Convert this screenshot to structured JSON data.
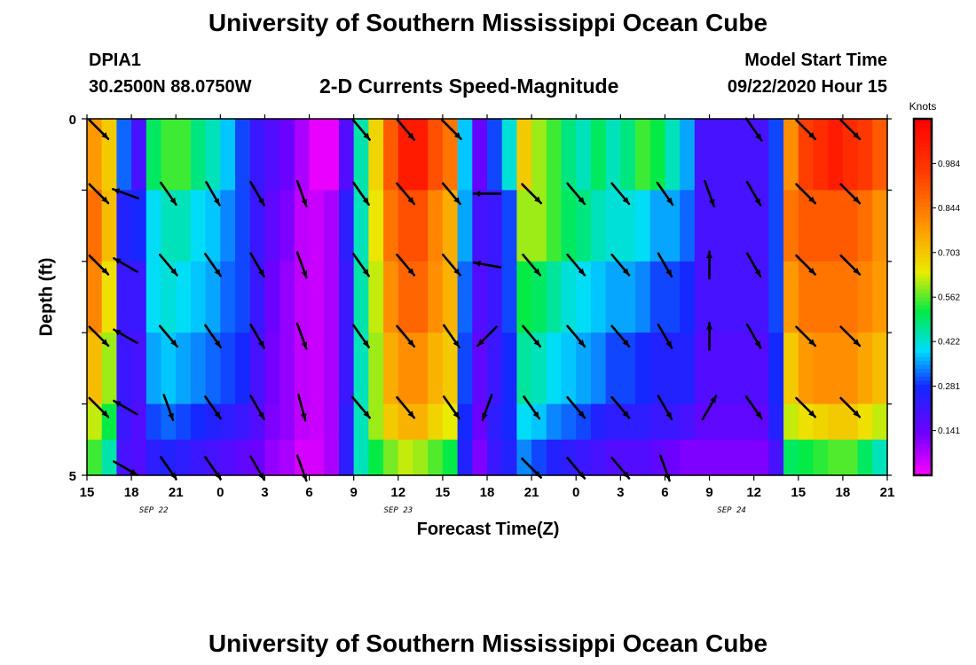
{
  "header": {
    "title": "University of Southern Mississippi Ocean Cube",
    "station_name": "DPIA1",
    "station_coords": "30.2500N 88.0750W",
    "subtitle": "2-D Currents Speed-Magnitude",
    "model_start_label": "Model Start Time",
    "model_start_value": "09/22/2020 Hour 15"
  },
  "footer": {
    "title": "University of Southern Mississippi Ocean Cube"
  },
  "chart_data": {
    "type": "heatmap",
    "xlabel": "Forecast Time(Z)",
    "ylabel": "Depth (ft)",
    "x_unit": "hours from 09/22 15Z",
    "xlim": [
      0,
      54
    ],
    "ylim": [
      0,
      5
    ],
    "y_ticks": [
      "0",
      "5"
    ],
    "x_tick_labels": [
      "15",
      "18",
      "21",
      "0",
      "3",
      "6",
      "9",
      "12",
      "15",
      "18",
      "21",
      "0",
      "3",
      "6",
      "9",
      "12",
      "15",
      "18",
      "21"
    ],
    "date_labels": [
      {
        "text": "SEP 22",
        "hour": 4.5
      },
      {
        "text": "SEP 23",
        "hour": 21
      },
      {
        "text": "SEP 24",
        "hour": 43.5
      }
    ],
    "colorbar": {
      "label": "Knots",
      "min": 0,
      "max": 1.125,
      "ticks": [
        "0.984",
        "0.844",
        "0.703",
        "0.562",
        "0.422",
        "0.281",
        "0.141"
      ],
      "tick_values": [
        0.984,
        0.844,
        0.703,
        0.562,
        0.422,
        0.281,
        0.141
      ]
    },
    "depth_layers": [
      "0-1",
      "1-2",
      "2-3",
      "3-4",
      "4-4.5",
      "4.5-5"
    ],
    "time_hours": [
      0,
      1,
      2,
      3,
      4,
      5,
      6,
      7,
      8,
      9,
      10,
      11,
      12,
      13,
      14,
      15,
      16,
      17,
      18,
      19,
      20,
      21,
      22,
      23,
      24,
      25,
      26,
      27,
      28,
      29,
      30,
      31,
      32,
      33,
      34,
      35,
      36,
      37,
      38,
      39,
      40,
      41,
      42,
      43,
      44,
      45,
      46,
      47,
      48,
      49,
      50,
      51,
      52,
      53
    ],
    "speed": [
      [
        0.78,
        0.7,
        0.32,
        0.2,
        0.5,
        0.55,
        0.55,
        0.48,
        0.44,
        0.38,
        0.3,
        0.22,
        0.18,
        0.14,
        0.08,
        0.02,
        0.02,
        0.18,
        0.45,
        0.68,
        0.9,
        1.05,
        1.05,
        0.92,
        0.85,
        0.38,
        0.15,
        0.3,
        0.42,
        0.7,
        0.6,
        0.55,
        0.48,
        0.44,
        0.5,
        0.44,
        0.48,
        0.55,
        0.52,
        0.44,
        0.36,
        0.2,
        0.2,
        0.2,
        0.2,
        0.2,
        0.3,
        0.8,
        0.95,
        1.0,
        1.05,
        1.0,
        0.97,
        0.9
      ],
      [
        0.86,
        0.72,
        0.26,
        0.28,
        0.4,
        0.44,
        0.44,
        0.4,
        0.38,
        0.34,
        0.3,
        0.22,
        0.16,
        0.12,
        0.06,
        0.05,
        0.08,
        0.24,
        0.44,
        0.65,
        0.85,
        0.92,
        0.92,
        0.82,
        0.75,
        0.36,
        0.2,
        0.22,
        0.3,
        0.6,
        0.6,
        0.55,
        0.5,
        0.48,
        0.44,
        0.42,
        0.42,
        0.4,
        0.36,
        0.36,
        0.32,
        0.2,
        0.2,
        0.2,
        0.2,
        0.2,
        0.3,
        0.85,
        0.9,
        0.9,
        0.9,
        0.9,
        0.86,
        0.8
      ],
      [
        0.82,
        0.66,
        0.22,
        0.22,
        0.4,
        0.42,
        0.4,
        0.38,
        0.36,
        0.32,
        0.3,
        0.22,
        0.14,
        0.1,
        0.06,
        0.05,
        0.08,
        0.22,
        0.45,
        0.62,
        0.8,
        0.88,
        0.88,
        0.8,
        0.74,
        0.32,
        0.18,
        0.22,
        0.3,
        0.52,
        0.5,
        0.46,
        0.42,
        0.4,
        0.38,
        0.36,
        0.36,
        0.34,
        0.3,
        0.3,
        0.28,
        0.2,
        0.2,
        0.2,
        0.2,
        0.2,
        0.3,
        0.78,
        0.85,
        0.85,
        0.85,
        0.85,
        0.82,
        0.78
      ],
      [
        0.72,
        0.6,
        0.22,
        0.2,
        0.36,
        0.38,
        0.36,
        0.34,
        0.32,
        0.3,
        0.28,
        0.2,
        0.13,
        0.1,
        0.06,
        0.05,
        0.08,
        0.22,
        0.44,
        0.6,
        0.75,
        0.8,
        0.8,
        0.74,
        0.7,
        0.3,
        0.16,
        0.22,
        0.28,
        0.46,
        0.44,
        0.4,
        0.38,
        0.36,
        0.34,
        0.3,
        0.3,
        0.28,
        0.26,
        0.26,
        0.26,
        0.18,
        0.18,
        0.18,
        0.18,
        0.18,
        0.28,
        0.7,
        0.78,
        0.8,
        0.8,
        0.8,
        0.76,
        0.72
      ],
      [
        0.62,
        0.52,
        0.22,
        0.18,
        0.3,
        0.32,
        0.3,
        0.28,
        0.26,
        0.24,
        0.22,
        0.18,
        0.12,
        0.1,
        0.06,
        0.05,
        0.08,
        0.24,
        0.44,
        0.6,
        0.7,
        0.74,
        0.74,
        0.68,
        0.64,
        0.28,
        0.14,
        0.24,
        0.28,
        0.4,
        0.38,
        0.34,
        0.32,
        0.3,
        0.26,
        0.24,
        0.24,
        0.24,
        0.22,
        0.22,
        0.2,
        0.16,
        0.16,
        0.16,
        0.16,
        0.16,
        0.26,
        0.62,
        0.66,
        0.68,
        0.7,
        0.7,
        0.66,
        0.62
      ],
      [
        0.55,
        0.45,
        0.2,
        0.18,
        0.24,
        0.26,
        0.24,
        0.22,
        0.2,
        0.18,
        0.16,
        0.14,
        0.1,
        0.08,
        0.04,
        0.04,
        0.08,
        0.24,
        0.44,
        0.52,
        0.58,
        0.62,
        0.6,
        0.56,
        0.52,
        0.26,
        0.12,
        0.22,
        0.26,
        0.34,
        0.3,
        0.26,
        0.24,
        0.22,
        0.2,
        0.18,
        0.18,
        0.18,
        0.16,
        0.14,
        0.12,
        0.12,
        0.12,
        0.12,
        0.12,
        0.12,
        0.2,
        0.5,
        0.52,
        0.54,
        0.56,
        0.56,
        0.5,
        0.44
      ]
    ],
    "arrow_rows_depth": [
      0.15,
      1.05,
      2.05,
      3.05,
      4.05,
      4.9
    ],
    "arrow_cols_hours": [
      0.8,
      2.6,
      5.5,
      8.5,
      11.5,
      14.5,
      18.5,
      21.5,
      24.6,
      27.0,
      30.0,
      33.0,
      36.0,
      39.0,
      42.0,
      45.0,
      48.5,
      51.5
    ],
    "arrow_directions_deg": [
      [
        135,
        null,
        null,
        null,
        null,
        null,
        140,
        140,
        135,
        null,
        null,
        null,
        null,
        null,
        null,
        145,
        135,
        135
      ],
      [
        135,
        290,
        145,
        150,
        150,
        160,
        145,
        140,
        140,
        270,
        135,
        140,
        140,
        145,
        160,
        150,
        135,
        135
      ],
      [
        135,
        300,
        140,
        145,
        150,
        160,
        145,
        140,
        140,
        280,
        140,
        140,
        140,
        150,
        0,
        150,
        135,
        135
      ],
      [
        135,
        300,
        140,
        145,
        150,
        160,
        145,
        140,
        145,
        225,
        140,
        140,
        140,
        150,
        0,
        150,
        135,
        135
      ],
      [
        135,
        300,
        160,
        145,
        150,
        165,
        140,
        140,
        145,
        200,
        145,
        140,
        140,
        150,
        30,
        145,
        135,
        135
      ],
      [
        null,
        120,
        145,
        145,
        150,
        160,
        null,
        null,
        null,
        null,
        135,
        140,
        140,
        160,
        null,
        null,
        null,
        null
      ]
    ]
  }
}
